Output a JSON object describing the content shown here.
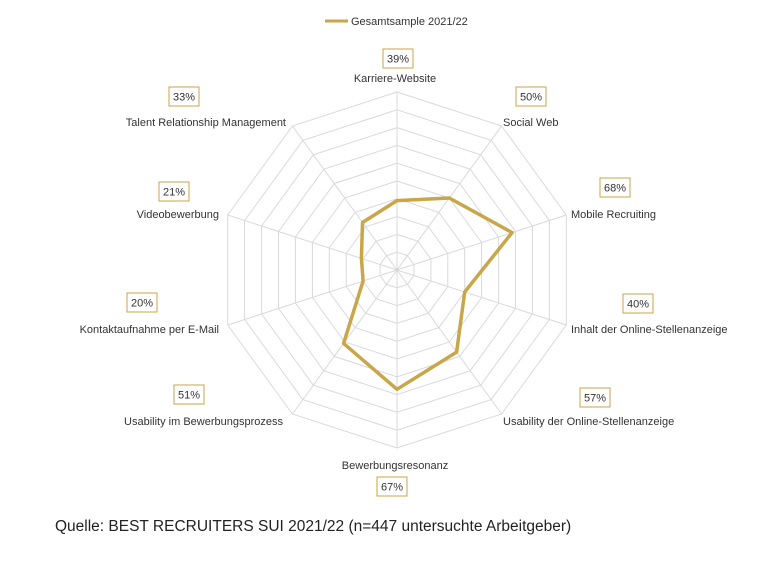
{
  "chart_data": {
    "type": "radar",
    "legend_position": "top",
    "grid": true,
    "categories": [
      "Karriere-Website",
      "Social Web",
      "Mobile Recruiting",
      "Inhalt der Online-Stellenanzeige",
      "Usability der Online-Stellenanzeige",
      "Bewerbungsresonanz",
      "Usability im Bewerbungsprozess",
      "Kontaktaufnahme per E-Mail",
      "Videobewerbung",
      "Talent Relationship Management"
    ],
    "value_labels": [
      "39%",
      "50%",
      "68%",
      "40%",
      "57%",
      "67%",
      "51%",
      "20%",
      "21%",
      "33%"
    ],
    "series": [
      {
        "name": "Gesamtsample 2021/22",
        "values": [
          39,
          50,
          68,
          40,
          57,
          67,
          51,
          20,
          21,
          33
        ],
        "color": "#c9a64a"
      }
    ],
    "rlim": [
      0,
      100
    ],
    "grid_color": "#d9d9d9"
  },
  "source": "Quelle: BEST RECRUITERS SUI 2021/22 (n=447 untersuchte Arbeitgeber)"
}
